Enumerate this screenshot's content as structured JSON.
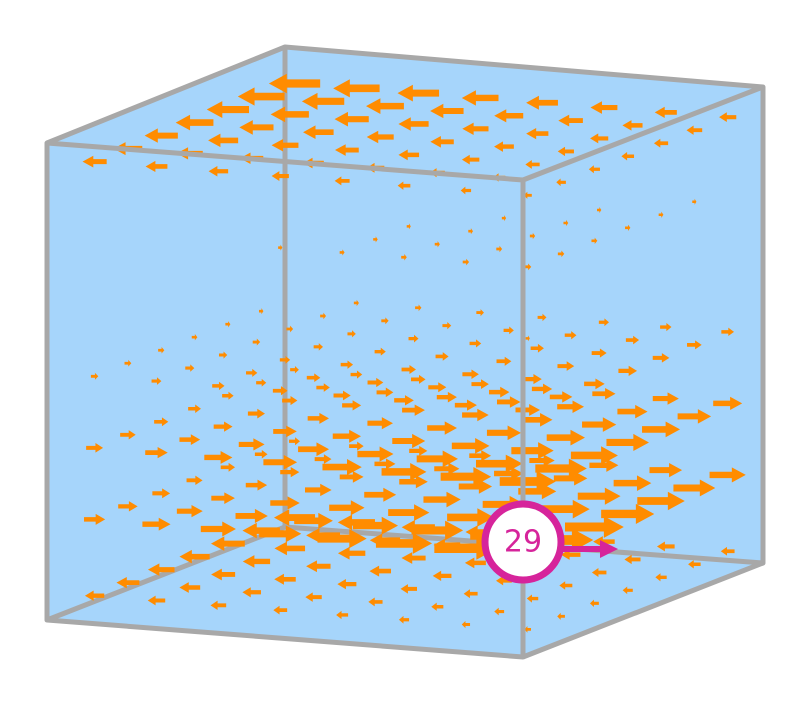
{
  "marker": {
    "label": "29"
  }
}
